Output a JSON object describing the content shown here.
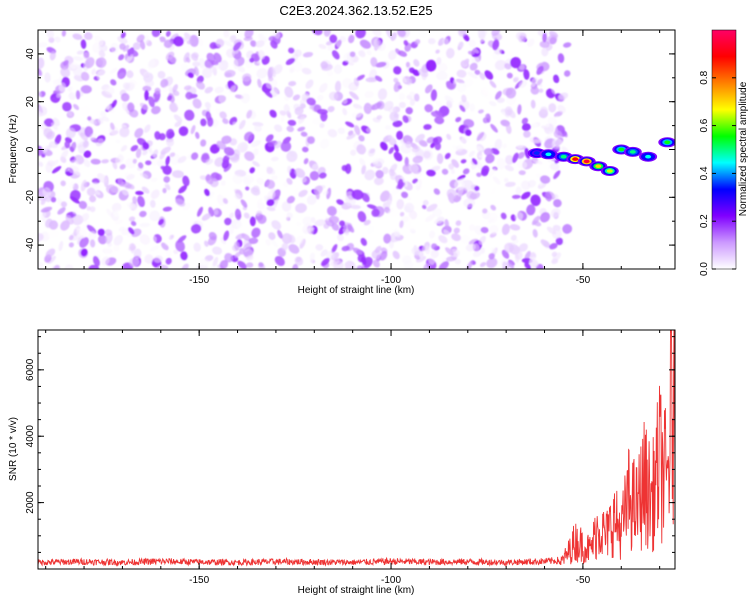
{
  "title": "C2E3.2024.362.13.52.E25",
  "chart_data": [
    {
      "type": "heatmap",
      "xlabel": "Height of straight line (km)",
      "ylabel": "Frequency (Hz)",
      "xlim": [
        -192,
        -26
      ],
      "ylim": [
        -50,
        50
      ],
      "xticks": [
        -150,
        -100,
        -50
      ],
      "yticks": [
        -40,
        -20,
        0,
        20,
        40
      ],
      "colorbar": {
        "label": "Normalized spectral amplitude",
        "range": [
          0,
          1
        ],
        "ticks": [
          0.0,
          0.2,
          0.4,
          0.6,
          0.8
        ],
        "tick_labels": [
          "0.0",
          "0.2",
          "0.4",
          "0.6",
          "0.8"
        ],
        "colormap": [
          "#ffffff",
          "#cc99ff",
          "#8000ff",
          "#0000ff",
          "#00ffff",
          "#00ff00",
          "#ffff00",
          "#ff8000",
          "#ff0000",
          "#ff0066"
        ]
      },
      "noise_region": {
        "x": [
          -192,
          -54
        ],
        "amplitude_range": [
          0.0,
          0.2
        ]
      },
      "signal_ridge": [
        {
          "x": -62,
          "y": -1.5,
          "amplitude": 0.35
        },
        {
          "x": -59,
          "y": -2,
          "amplitude": 0.45
        },
        {
          "x": -55,
          "y": -3,
          "amplitude": 0.5
        },
        {
          "x": -52,
          "y": -4,
          "amplitude": 0.9
        },
        {
          "x": -49,
          "y": -5,
          "amplitude": 0.95
        },
        {
          "x": -46,
          "y": -7,
          "amplitude": 0.7
        },
        {
          "x": -43,
          "y": -9,
          "amplitude": 0.65
        },
        {
          "x": -40,
          "y": 0,
          "amplitude": 0.55
        },
        {
          "x": -37,
          "y": -1,
          "amplitude": 0.5
        },
        {
          "x": -33,
          "y": -3,
          "amplitude": 0.45
        },
        {
          "x": -28,
          "y": 3,
          "amplitude": 0.55
        }
      ]
    },
    {
      "type": "line",
      "xlabel": "Height of straight line (km)",
      "ylabel": "SNR (10 * v/v)",
      "xlim": [
        -192,
        -26
      ],
      "ylim": [
        0,
        7200
      ],
      "xticks": [
        -150,
        -100,
        -50
      ],
      "yticks": [
        2000,
        4000,
        6000
      ],
      "series": [
        {
          "color": "#ee3333",
          "x": [
            -192,
            -180,
            -170,
            -160,
            -150,
            -140,
            -130,
            -120,
            -110,
            -100,
            -90,
            -80,
            -70,
            -60,
            -56,
            -54,
            -52,
            -50,
            -48,
            -46,
            -44,
            -42,
            -40,
            -38,
            -36,
            -34,
            -32,
            -30,
            -28,
            -27,
            -26
          ],
          "y": [
            200,
            220,
            200,
            230,
            210,
            200,
            220,
            210,
            200,
            230,
            210,
            220,
            200,
            230,
            260,
            700,
            1300,
            1100,
            900,
            2000,
            1500,
            2300,
            1800,
            3300,
            2800,
            4000,
            3200,
            5000,
            4000,
            7200,
            6800
          ]
        }
      ]
    }
  ]
}
